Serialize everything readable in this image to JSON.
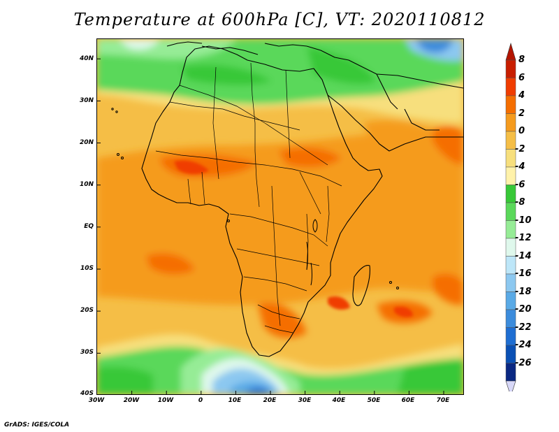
{
  "title": "Temperature at 600hPa [C], VT: 2020110812",
  "footer": "GrADS: IGES/COLA",
  "map": {
    "variable": "Temperature",
    "level": "600hPa",
    "units": "C",
    "valid_time": "2020110812",
    "lat_labels": [
      "40N",
      "30N",
      "20N",
      "10N",
      "EQ",
      "10S",
      "20S",
      "30S",
      "40S"
    ],
    "lon_labels": [
      "30W",
      "20W",
      "10W",
      "0",
      "10E",
      "20E",
      "30E",
      "40E",
      "50E",
      "60E",
      "70E"
    ]
  },
  "colorbar": {
    "labels": [
      "8",
      "6",
      "4",
      "2",
      "0",
      "-2",
      "-4",
      "-6",
      "-8",
      "-10",
      "-12",
      "-14",
      "-16",
      "-18",
      "-20",
      "-22",
      "-24",
      "-26"
    ],
    "colors": [
      "#c81e00",
      "#f03c00",
      "#f56e00",
      "#f59b1e",
      "#f5be46",
      "#f7df7d",
      "#fff2aa",
      "#37c837",
      "#5ad85a",
      "#96ec96",
      "#dff8ec",
      "#bde6f8",
      "#8cc8f0",
      "#5aaae6",
      "#3c8cdc",
      "#1e6ed2",
      "#0a50b4",
      "#0a2882"
    ],
    "top_arrow_color": "#b41400",
    "bottom_arrow_color": "#d8d8f8"
  }
}
